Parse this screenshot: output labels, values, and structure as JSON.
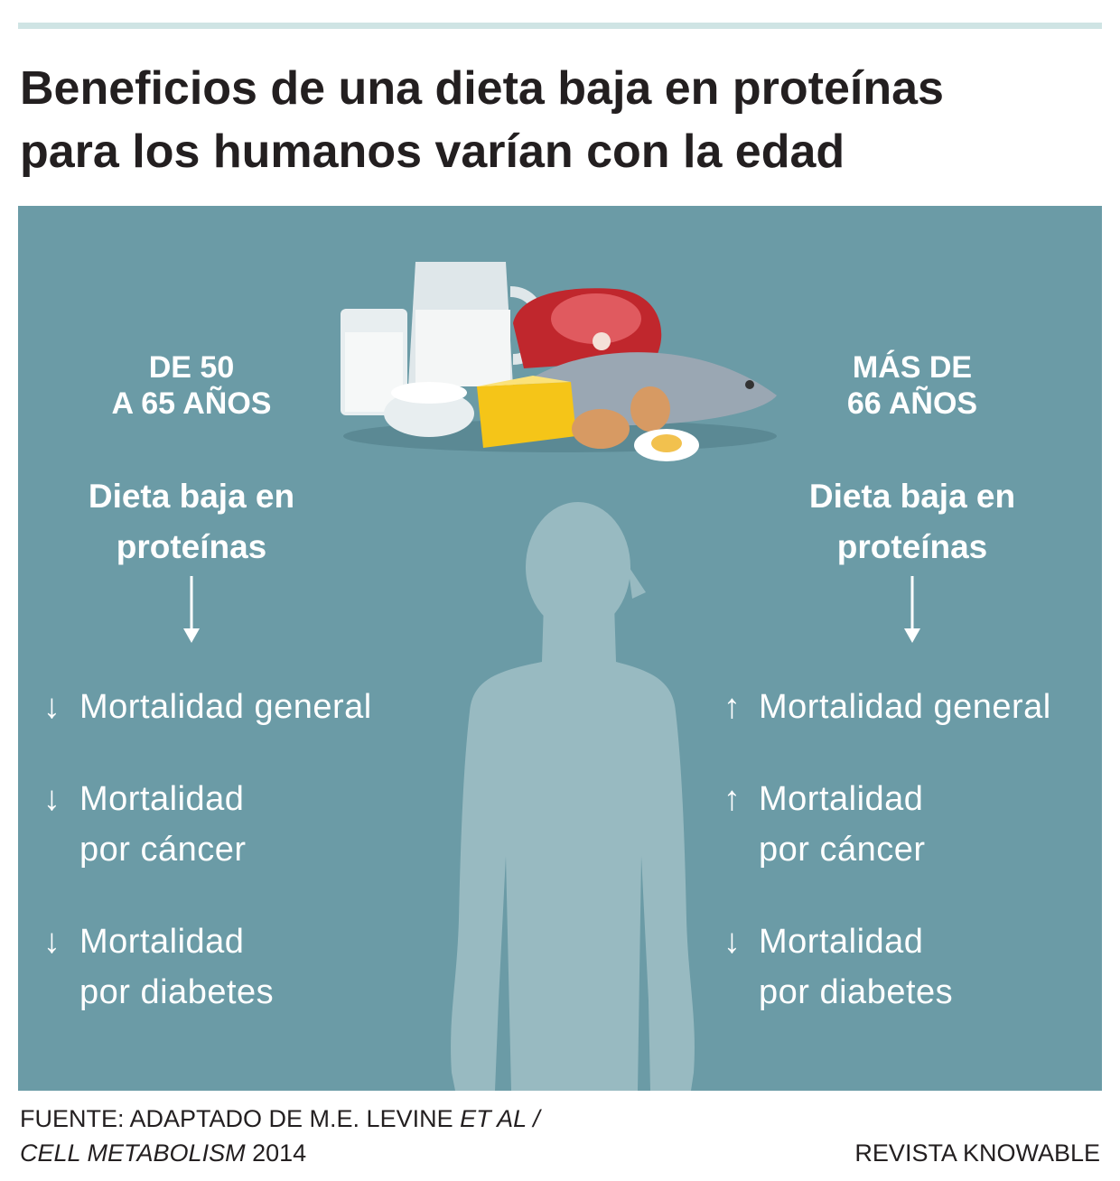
{
  "title": [
    "Beneficios de una dieta baja en proteínas",
    "para los humanos varían con la edad"
  ],
  "columns": [
    {
      "heading": [
        "DE 50",
        "A 65 AÑOS"
      ],
      "diet": [
        "Dieta baja en",
        "proteínas"
      ],
      "items": [
        {
          "arrow": "↓",
          "lines": [
            "Mortalidad general"
          ]
        },
        {
          "arrow": "↓",
          "lines": [
            "Mortalidad",
            "por cáncer"
          ]
        },
        {
          "arrow": "↓",
          "lines": [
            "Mortalidad",
            "por diabetes"
          ]
        }
      ]
    },
    {
      "heading": [
        "MÁS DE",
        "66 AÑOS"
      ],
      "diet": [
        "Dieta baja en",
        "proteínas"
      ],
      "items": [
        {
          "arrow": "↑",
          "lines": [
            "Mortalidad general"
          ]
        },
        {
          "arrow": "↑",
          "lines": [
            "Mortalidad",
            "por cáncer"
          ]
        },
        {
          "arrow": "↓",
          "lines": [
            "Mortalidad",
            "por diabetes"
          ]
        }
      ]
    }
  ],
  "source": {
    "plain1": "FUENTE: ADAPTADO DE M.E. LEVINE",
    "italic1": "ET AL /",
    "italic2": "CELL METABOLISM",
    "plain2": "2014"
  },
  "credit": "REVISTA KNOWABLE"
}
